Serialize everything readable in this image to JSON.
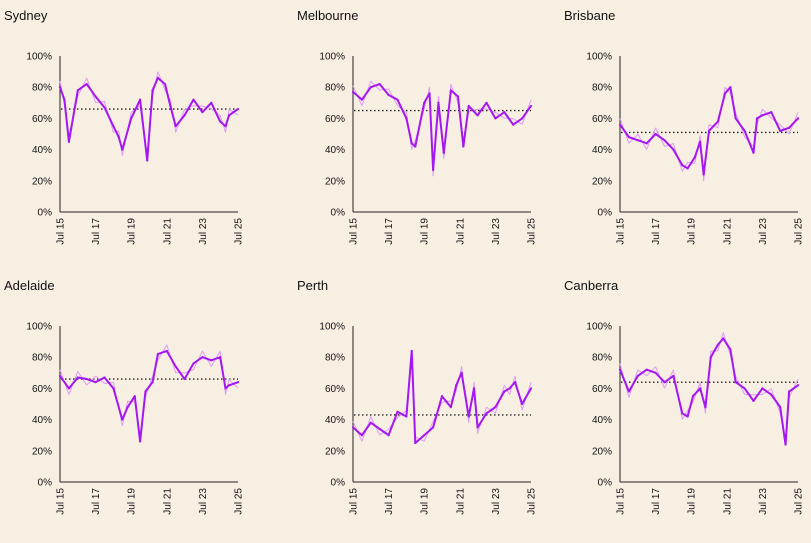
{
  "chart_data": [
    {
      "type": "line",
      "title": "Sydney",
      "x_tick_labels": [
        "Jul 15",
        "Jul 17",
        "Jul 19",
        "Jul 21",
        "Jul 23",
        "Jul 25"
      ],
      "y_tick_labels": [
        "0%",
        "20%",
        "40%",
        "60%",
        "80%",
        "100%"
      ],
      "ylim": [
        0,
        100
      ],
      "average": 66,
      "series": [
        {
          "x": [
            2015.5,
            2015.75,
            2016.0,
            2016.5,
            2017.0,
            2017.5,
            2018.0,
            2018.5,
            2018.8,
            2019.0,
            2019.5,
            2020.0,
            2020.4,
            2020.7,
            2021.0,
            2021.4,
            2021.7,
            2022.0,
            2022.5,
            2023.0,
            2023.5,
            2024.0,
            2024.5,
            2024.8,
            2025.0,
            2025.5
          ],
          "y": [
            80,
            72,
            45,
            78,
            82,
            74,
            67,
            55,
            48,
            40,
            60,
            72,
            33,
            78,
            86,
            82,
            68,
            55,
            62,
            72,
            64,
            70,
            58,
            55,
            62,
            66
          ]
        }
      ]
    },
    {
      "type": "line",
      "title": "Melbourne",
      "x_tick_labels": [
        "Jul 15",
        "Jul 17",
        "Jul 19",
        "Jul 21",
        "Jul 23",
        "Jul 25"
      ],
      "y_tick_labels": [
        "0%",
        "20%",
        "40%",
        "60%",
        "80%",
        "100%"
      ],
      "ylim": [
        0,
        100
      ],
      "average": 65,
      "series": [
        {
          "x": [
            2015.5,
            2016.0,
            2016.5,
            2017.0,
            2017.5,
            2018.0,
            2018.5,
            2018.8,
            2019.0,
            2019.5,
            2019.8,
            2020.0,
            2020.3,
            2020.6,
            2021.0,
            2021.4,
            2021.7,
            2022.0,
            2022.5,
            2023.0,
            2023.5,
            2024.0,
            2024.5,
            2025.0,
            2025.5
          ],
          "y": [
            77,
            72,
            80,
            82,
            75,
            72,
            60,
            44,
            42,
            70,
            76,
            27,
            70,
            38,
            78,
            74,
            42,
            68,
            62,
            70,
            60,
            64,
            56,
            60,
            68
          ]
        }
      ]
    },
    {
      "type": "line",
      "title": "Brisbane",
      "x_tick_labels": [
        "Jul 15",
        "Jul 17",
        "Jul 19",
        "Jul 21",
        "Jul 23",
        "Jul 25"
      ],
      "y_tick_labels": [
        "0%",
        "20%",
        "40%",
        "60%",
        "80%",
        "100%"
      ],
      "ylim": [
        0,
        100
      ],
      "average": 51,
      "series": [
        {
          "x": [
            2015.5,
            2016.0,
            2016.5,
            2017.0,
            2017.5,
            2018.0,
            2018.5,
            2019.0,
            2019.3,
            2019.7,
            2020.0,
            2020.2,
            2020.5,
            2021.0,
            2021.4,
            2021.7,
            2022.0,
            2022.5,
            2023.0,
            2023.2,
            2023.5,
            2024.0,
            2024.5,
            2025.0,
            2025.5
          ],
          "y": [
            56,
            48,
            46,
            44,
            50,
            46,
            40,
            30,
            28,
            35,
            45,
            24,
            52,
            58,
            76,
            80,
            60,
            52,
            38,
            60,
            62,
            64,
            52,
            54,
            60
          ]
        }
      ]
    },
    {
      "type": "line",
      "title": "Adelaide",
      "x_tick_labels": [
        "Jul 15",
        "Jul 17",
        "Jul 19",
        "Jul 21",
        "Jul 23",
        "Jul 25"
      ],
      "y_tick_labels": [
        "0%",
        "20%",
        "40%",
        "60%",
        "80%",
        "100%"
      ],
      "ylim": [
        0,
        100
      ],
      "average": 66,
      "series": [
        {
          "x": [
            2015.5,
            2016.0,
            2016.5,
            2017.0,
            2017.5,
            2018.0,
            2018.5,
            2019.0,
            2019.3,
            2019.7,
            2020.0,
            2020.3,
            2020.7,
            2021.0,
            2021.5,
            2022.0,
            2022.5,
            2023.0,
            2023.5,
            2024.0,
            2024.5,
            2024.8,
            2025.0,
            2025.5
          ],
          "y": [
            68,
            60,
            67,
            66,
            64,
            67,
            60,
            40,
            48,
            55,
            26,
            58,
            64,
            82,
            84,
            74,
            66,
            76,
            80,
            78,
            80,
            60,
            62,
            64
          ]
        }
      ]
    },
    {
      "type": "line",
      "title": "Perth",
      "x_tick_labels": [
        "Jul 15",
        "Jul 17",
        "Jul 19",
        "Jul 21",
        "Jul 23",
        "Jul 25"
      ],
      "y_tick_labels": [
        "0%",
        "20%",
        "40%",
        "60%",
        "80%",
        "100%"
      ],
      "ylim": [
        0,
        100
      ],
      "average": 43,
      "series": [
        {
          "x": [
            2015.5,
            2016.0,
            2016.5,
            2017.0,
            2017.5,
            2018.0,
            2018.5,
            2018.8,
            2019.0,
            2019.5,
            2020.0,
            2020.5,
            2021.0,
            2021.3,
            2021.6,
            2022.0,
            2022.3,
            2022.5,
            2023.0,
            2023.5,
            2024.0,
            2024.3,
            2024.6,
            2025.0,
            2025.5
          ],
          "y": [
            35,
            30,
            38,
            34,
            30,
            45,
            42,
            84,
            25,
            30,
            35,
            55,
            48,
            62,
            70,
            42,
            60,
            35,
            44,
            48,
            58,
            60,
            64,
            50,
            60
          ]
        }
      ]
    },
    {
      "type": "line",
      "title": "Canberra",
      "x_tick_labels": [
        "Jul 15",
        "Jul 17",
        "Jul 19",
        "Jul 21",
        "Jul 23",
        "Jul 25"
      ],
      "y_tick_labels": [
        "0%",
        "20%",
        "40%",
        "60%",
        "80%",
        "100%"
      ],
      "ylim": [
        0,
        100
      ],
      "average": 64,
      "series": [
        {
          "x": [
            2015.5,
            2016.0,
            2016.5,
            2017.0,
            2017.5,
            2018.0,
            2018.5,
            2019.0,
            2019.3,
            2019.6,
            2020.0,
            2020.3,
            2020.6,
            2021.0,
            2021.3,
            2021.7,
            2022.0,
            2022.5,
            2023.0,
            2023.5,
            2024.0,
            2024.5,
            2024.8,
            2025.0,
            2025.5
          ],
          "y": [
            72,
            58,
            68,
            72,
            70,
            64,
            68,
            44,
            42,
            55,
            60,
            48,
            80,
            88,
            92,
            85,
            64,
            60,
            52,
            60,
            56,
            48,
            24,
            58,
            62
          ]
        }
      ]
    }
  ]
}
